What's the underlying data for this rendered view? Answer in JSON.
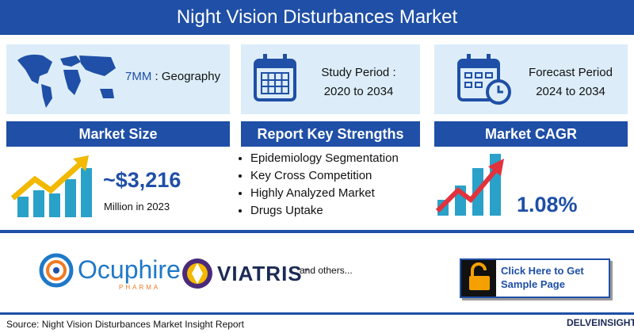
{
  "header": {
    "title": "Night Vision Disturbances Market"
  },
  "geography": {
    "code": "7MM",
    "label": ": Geography"
  },
  "study_period": {
    "label": "Study Period :",
    "value": "2020 to 2034"
  },
  "forecast_period": {
    "label": "Forecast Period",
    "value": "2024 to 2034"
  },
  "market_size": {
    "title": "Market Size",
    "value": "~$3,216",
    "note": "Million in 2023"
  },
  "key_strengths": {
    "title": "Report Key Strengths",
    "items": [
      "Epidemiology Segmentation",
      "Key Cross Competition",
      "Highly Analyzed Market",
      "Drugs Uptake"
    ]
  },
  "market_cagr": {
    "title": "Market CAGR",
    "value": "1.08%"
  },
  "companies": {
    "ocuphire": "Ocuphire",
    "ocuphire_sub": "PHARMA",
    "viatris": "VIATRIS",
    "viatris_mark": "™",
    "others": "and others..."
  },
  "cta": {
    "label": "Click Here to Get Sample Page"
  },
  "footer": {
    "source": "Source: Night Vision Disturbances Market Insight Report",
    "brand": "DELVEINSIGHT"
  }
}
